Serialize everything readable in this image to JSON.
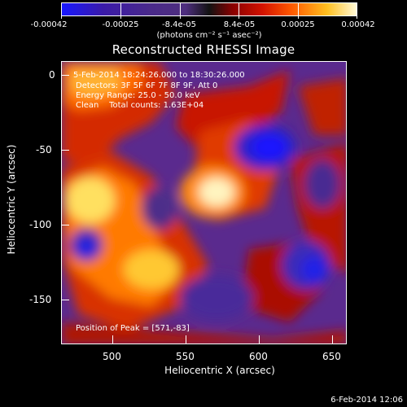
{
  "colorbar": {
    "ticks": [
      "-0.00042",
      "-0.00025",
      "-8.4e-05",
      "8.4e-05",
      "0.00025",
      "0.00042"
    ],
    "unit_label": "(photons cm⁻² s⁻¹ asec⁻²)"
  },
  "title": "Reconstructed RHESSI Image",
  "annotations": {
    "time_range": "5-Feb-2014 18:24:26.000 to 18:30:26.000",
    "detectors": "Detectors: 3F 5F 6F 7F 8F 9F, Att 0",
    "energy": "Energy Range: 25.0 - 50.0 keV",
    "clean": "Clean    Total counts: 1.63E+04",
    "peak": "Position of Peak = [571,-83]"
  },
  "x_axis": {
    "label": "Heliocentric X (arcsec)",
    "ticks": [
      "500",
      "550",
      "600",
      "650"
    ]
  },
  "y_axis": {
    "label": "Heliocentric Y (arcsec)",
    "ticks": [
      "0",
      "-50",
      "-100",
      "-150"
    ]
  },
  "footer": "6-Feb-2014 12:06"
}
